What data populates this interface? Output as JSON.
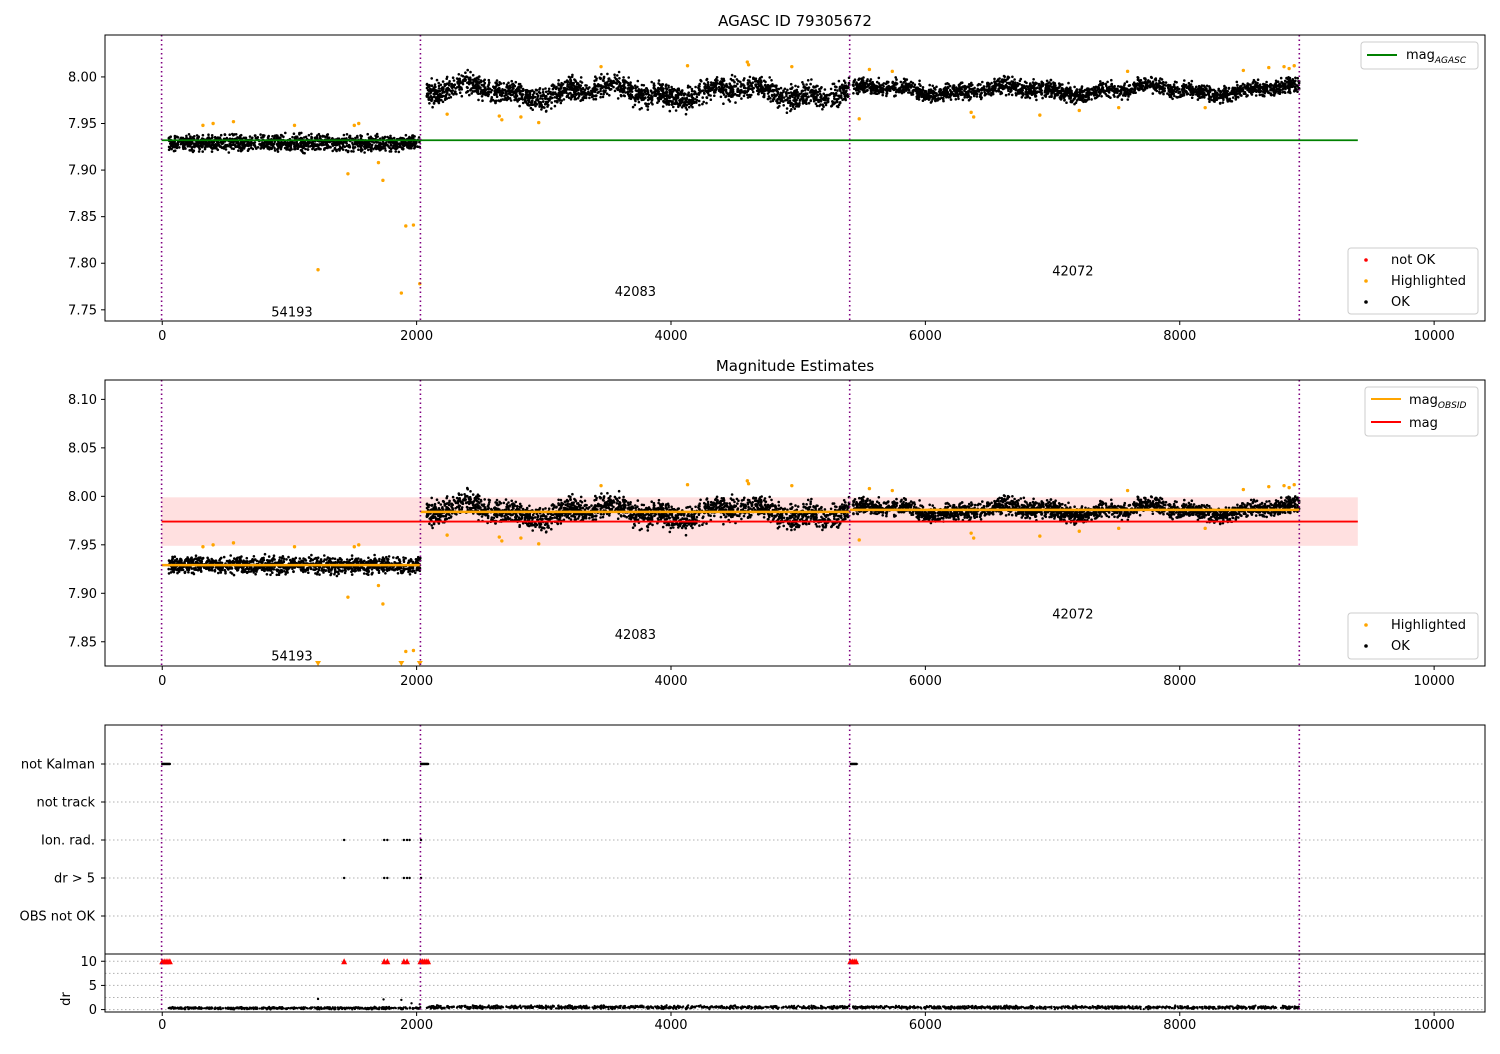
{
  "chart_data": [
    {
      "type": "scatter",
      "title": "AGASC ID 79305672",
      "xlim": [
        -450,
        10400
      ],
      "ylim": [
        7.738,
        8.045
      ],
      "xticks": [
        0,
        2000,
        4000,
        6000,
        8000,
        10000
      ],
      "yticks": [
        7.75,
        7.8,
        7.85,
        7.9,
        7.95,
        8.0
      ],
      "obsid_boundaries": [
        -5,
        2030,
        5405,
        8940
      ],
      "obs_labels": [
        {
          "text": "54193",
          "x": 1020,
          "y": 7.747
        },
        {
          "text": "42083",
          "x": 3720,
          "y": 7.769
        },
        {
          "text": "42072",
          "x": 7160,
          "y": 7.791
        }
      ],
      "segments": [
        {
          "x": [
            50,
            2030
          ],
          "center": 7.929,
          "spread": 0.007
        },
        {
          "x": [
            2080,
            5405
          ],
          "center": 7.984,
          "spread": 0.01,
          "wave": 0.006
        },
        {
          "x": [
            5430,
            8940
          ],
          "center": 7.986,
          "spread": 0.007,
          "wave": 0.004
        }
      ],
      "lines": [
        {
          "name": "mag_AGASC",
          "y": 7.932,
          "x": [
            -5,
            9400
          ],
          "color": "#008000"
        }
      ],
      "legend_lines": [
        {
          "label": "mag",
          "sub": "AGASC",
          "color": "#008000"
        }
      ],
      "legend_points": [
        {
          "label": "not OK",
          "color": "#ff0000"
        },
        {
          "label": "Highlighted",
          "color": "#ffa500"
        },
        {
          "label": "OK",
          "color": "#000000"
        }
      ],
      "highlighted_points": [
        {
          "x": 1225,
          "y": 7.793
        },
        {
          "x": 1460,
          "y": 7.896
        },
        {
          "x": 1700,
          "y": 7.908
        },
        {
          "x": 1735,
          "y": 7.889
        },
        {
          "x": 1915,
          "y": 7.84
        },
        {
          "x": 1975,
          "y": 7.841
        },
        {
          "x": 1880,
          "y": 7.768
        },
        {
          "x": 2025,
          "y": 7.778
        },
        {
          "x": 320,
          "y": 7.948
        },
        {
          "x": 400,
          "y": 7.95
        },
        {
          "x": 560,
          "y": 7.952
        },
        {
          "x": 1040,
          "y": 7.948
        },
        {
          "x": 1510,
          "y": 7.948
        },
        {
          "x": 1545,
          "y": 7.95
        },
        {
          "x": 2240,
          "y": 7.96
        },
        {
          "x": 2650,
          "y": 7.958
        },
        {
          "x": 2670,
          "y": 7.954
        },
        {
          "x": 2820,
          "y": 7.957
        },
        {
          "x": 2960,
          "y": 7.951
        },
        {
          "x": 3450,
          "y": 8.011
        },
        {
          "x": 4130,
          "y": 8.012
        },
        {
          "x": 4600,
          "y": 8.016
        },
        {
          "x": 4610,
          "y": 8.013
        },
        {
          "x": 4950,
          "y": 8.011
        },
        {
          "x": 5480,
          "y": 7.955
        },
        {
          "x": 5560,
          "y": 8.008
        },
        {
          "x": 5740,
          "y": 8.006
        },
        {
          "x": 6360,
          "y": 7.962
        },
        {
          "x": 6380,
          "y": 7.957
        },
        {
          "x": 6900,
          "y": 7.959
        },
        {
          "x": 7210,
          "y": 7.964
        },
        {
          "x": 7520,
          "y": 7.967
        },
        {
          "x": 7590,
          "y": 8.006
        },
        {
          "x": 8200,
          "y": 7.967
        },
        {
          "x": 8500,
          "y": 8.007
        },
        {
          "x": 8700,
          "y": 8.01
        },
        {
          "x": 8820,
          "y": 8.011
        },
        {
          "x": 8860,
          "y": 8.009
        },
        {
          "x": 8900,
          "y": 8.012
        }
      ]
    },
    {
      "type": "scatter",
      "title": "Magnitude Estimates",
      "xlim": [
        -450,
        10400
      ],
      "ylim": [
        7.825,
        8.12
      ],
      "xticks": [
        0,
        2000,
        4000,
        6000,
        8000,
        10000
      ],
      "yticks": [
        7.85,
        7.9,
        7.95,
        8.0,
        8.05,
        8.1
      ],
      "obsid_boundaries": [
        -5,
        2030,
        5405,
        8940
      ],
      "obs_labels": [
        {
          "text": "54193",
          "x": 1020,
          "y": 7.835
        },
        {
          "text": "42083",
          "x": 3720,
          "y": 7.857
        },
        {
          "text": "42072",
          "x": 7160,
          "y": 7.878
        }
      ],
      "band": {
        "y": [
          7.949,
          7.999
        ],
        "x": [
          -5,
          9400
        ],
        "color": "#ffcccc"
      },
      "segments": [
        {
          "x": [
            50,
            2030
          ],
          "center": 7.929,
          "spread": 0.007
        },
        {
          "x": [
            2080,
            5405
          ],
          "center": 7.984,
          "spread": 0.01,
          "wave": 0.006
        },
        {
          "x": [
            5430,
            8940
          ],
          "center": 7.986,
          "spread": 0.007,
          "wave": 0.004
        }
      ],
      "obs_mag_lines": [
        {
          "x": [
            -5,
            2030
          ],
          "y": 7.929
        },
        {
          "x": [
            2030,
            5405
          ],
          "y": 7.984
        },
        {
          "x": [
            5405,
            8940
          ],
          "y": 7.986
        }
      ],
      "lines": [
        {
          "name": "mag",
          "y": 7.974,
          "x": [
            -5,
            9400
          ],
          "color": "#ff0000"
        }
      ],
      "legend_lines": [
        {
          "label": "mag",
          "sub": "OBSID",
          "color": "#ffa500"
        },
        {
          "label": "mag",
          "sub": "",
          "color": "#ff0000"
        }
      ],
      "legend_points": [
        {
          "label": "Highlighted",
          "color": "#ffa500"
        },
        {
          "label": "OK",
          "color": "#000000"
        }
      ],
      "highlighted_points": [
        {
          "x": 1460,
          "y": 7.896
        },
        {
          "x": 1700,
          "y": 7.908
        },
        {
          "x": 1735,
          "y": 7.889
        },
        {
          "x": 1915,
          "y": 7.84
        },
        {
          "x": 1975,
          "y": 7.841
        },
        {
          "x": 320,
          "y": 7.948
        },
        {
          "x": 400,
          "y": 7.95
        },
        {
          "x": 560,
          "y": 7.952
        },
        {
          "x": 1040,
          "y": 7.948
        },
        {
          "x": 1510,
          "y": 7.948
        },
        {
          "x": 1545,
          "y": 7.95
        },
        {
          "x": 2240,
          "y": 7.96
        },
        {
          "x": 2650,
          "y": 7.958
        },
        {
          "x": 2670,
          "y": 7.954
        },
        {
          "x": 2820,
          "y": 7.957
        },
        {
          "x": 2960,
          "y": 7.951
        },
        {
          "x": 3450,
          "y": 8.011
        },
        {
          "x": 4130,
          "y": 8.012
        },
        {
          "x": 4600,
          "y": 8.016
        },
        {
          "x": 4610,
          "y": 8.013
        },
        {
          "x": 4950,
          "y": 8.011
        },
        {
          "x": 5480,
          "y": 7.955
        },
        {
          "x": 5560,
          "y": 8.008
        },
        {
          "x": 5740,
          "y": 8.006
        },
        {
          "x": 6360,
          "y": 7.962
        },
        {
          "x": 6380,
          "y": 7.957
        },
        {
          "x": 6900,
          "y": 7.959
        },
        {
          "x": 7210,
          "y": 7.964
        },
        {
          "x": 7520,
          "y": 7.967
        },
        {
          "x": 7590,
          "y": 8.006
        },
        {
          "x": 8200,
          "y": 7.967
        },
        {
          "x": 8500,
          "y": 8.007
        },
        {
          "x": 8700,
          "y": 8.01
        },
        {
          "x": 8820,
          "y": 8.011
        },
        {
          "x": 8860,
          "y": 8.009
        },
        {
          "x": 8900,
          "y": 8.012
        }
      ],
      "clipped_points": [
        {
          "x": 1225,
          "y": 7.825
        },
        {
          "x": 1880,
          "y": 7.825
        },
        {
          "x": 2025,
          "y": 7.825
        }
      ]
    },
    {
      "type": "scatter",
      "title": "",
      "xlim": [
        -450,
        10400
      ],
      "obsid_boundaries": [
        -5,
        2030,
        5405,
        8940
      ],
      "flag_rows": [
        "not Kalman",
        "not track",
        "Ion. rad.",
        "dr > 5",
        "OBS not OK"
      ],
      "flag_points": [
        {
          "row": "not Kalman",
          "x": [
            0,
            60
          ],
          "dense": true
        },
        {
          "row": "not Kalman",
          "x": [
            2035,
            2090
          ],
          "dense": true
        },
        {
          "row": "not Kalman",
          "x": [
            5415,
            5460
          ],
          "dense": true
        },
        {
          "row": "Ion. rad.",
          "x": [
            1430,
            1745,
            1770,
            1900,
            1925,
            1945,
            2035
          ],
          "dense": false
        },
        {
          "row": "dr > 5",
          "x": [
            1430,
            1745,
            1770,
            1900,
            1925,
            1945,
            2035
          ],
          "dense": false
        }
      ],
      "dr": {
        "ylim": [
          -0.5,
          11.5
        ],
        "yticks": [
          0,
          5,
          10
        ],
        "ylabel": "dr",
        "clip_value": 10,
        "segments": [
          {
            "x": [
              50,
              2030
            ],
            "center": 0.3,
            "spread": 0.35
          },
          {
            "x": [
              2080,
              5405
            ],
            "center": 0.5,
            "spread": 0.5
          },
          {
            "x": [
              5430,
              8940
            ],
            "center": 0.45,
            "spread": 0.45
          }
        ],
        "outliers": [
          {
            "x": 1225,
            "y": 2.2
          },
          {
            "x": 1740,
            "y": 2.1
          },
          {
            "x": 1880,
            "y": 2.0
          },
          {
            "x": 1960,
            "y": 1.3
          },
          {
            "x": 2025,
            "y": 1.1
          }
        ],
        "clipped_x": [
          0,
          15,
          30,
          45,
          60,
          1430,
          1745,
          1770,
          1900,
          1925,
          2030,
          2045,
          2060,
          2075,
          2090,
          5410,
          5425,
          5440,
          5455
        ]
      },
      "xticks": [
        0,
        2000,
        4000,
        6000,
        8000,
        10000
      ]
    }
  ]
}
